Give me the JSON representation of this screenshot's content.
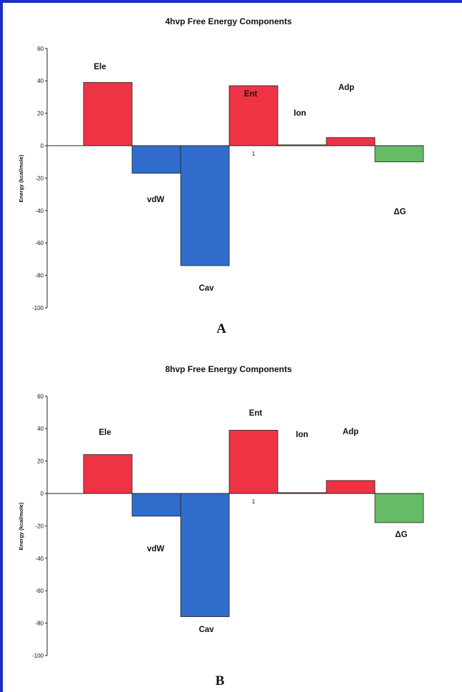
{
  "colors": {
    "positive_bar": "#ee3344",
    "negative_bar": "#2f6ccc",
    "total_bar": "#66bb66",
    "border": "#1a2ec8"
  },
  "chart_data": [
    {
      "type": "bar",
      "panel_label": "A",
      "title": "4hvp Free Energy Components",
      "ylabel": "Energy (kcal/mole)",
      "xlabel": "",
      "ylim": [
        -100,
        60
      ],
      "yticks": [
        60,
        40,
        20,
        0,
        -20,
        -40,
        -60,
        -80,
        -100
      ],
      "category_tick": "1",
      "grid": false,
      "series": [
        {
          "name": "Ele",
          "value": 39,
          "kind": "positive"
        },
        {
          "name": "vdW",
          "value": -17,
          "kind": "negative"
        },
        {
          "name": "Cav",
          "value": -74,
          "kind": "negative"
        },
        {
          "name": "Ent",
          "value": 37,
          "kind": "positive"
        },
        {
          "name": "Ion",
          "value": 0.5,
          "kind": "positive"
        },
        {
          "name": "Adp",
          "value": 5,
          "kind": "positive"
        },
        {
          "name": "ΔG",
          "value": -10,
          "kind": "total"
        }
      ]
    },
    {
      "type": "bar",
      "panel_label": "B",
      "title": "8hvp Free Energy Components",
      "ylabel": "Energy (kcal/mole)",
      "xlabel": "",
      "ylim": [
        -100,
        60
      ],
      "yticks": [
        60,
        40,
        20,
        0,
        -20,
        -40,
        -60,
        -80,
        -100
      ],
      "category_tick": "1",
      "grid": false,
      "series": [
        {
          "name": "Ele",
          "value": 24,
          "kind": "positive"
        },
        {
          "name": "vdW",
          "value": -14,
          "kind": "negative"
        },
        {
          "name": "Cav",
          "value": -76,
          "kind": "negative"
        },
        {
          "name": "Ent",
          "value": 39,
          "kind": "positive"
        },
        {
          "name": "Ion",
          "value": 0.5,
          "kind": "positive"
        },
        {
          "name": "Adp",
          "value": 8,
          "kind": "positive"
        },
        {
          "name": "ΔG",
          "value": -18,
          "kind": "total"
        }
      ]
    }
  ]
}
